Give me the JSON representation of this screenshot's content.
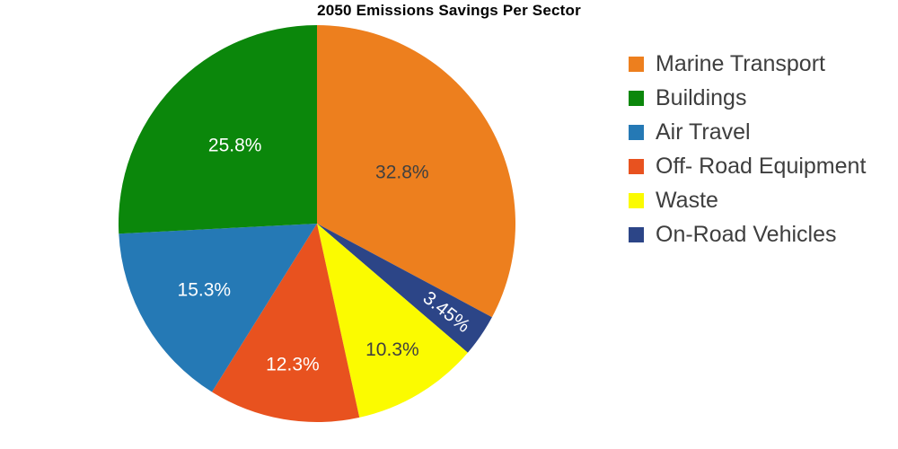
{
  "chart_data": {
    "type": "pie",
    "title": "2050 Emissions Savings Per Sector",
    "legend_position": "right",
    "background_color": "#ffffff",
    "title_color": "#000000",
    "legend_text_color": "#3e3e3e",
    "start_angle_deg_clockwise_from_top": 0,
    "draw_order_clockwise": [
      0,
      5,
      4,
      3,
      2,
      1
    ],
    "slices": [
      {
        "label": "Marine Transport",
        "value": 32.8,
        "pct_label": "32.8%",
        "color": "#ed7f1e",
        "label_text_color": "#404040"
      },
      {
        "label": "Buildings",
        "value": 25.8,
        "pct_label": "25.8%",
        "color": "#0b870b",
        "label_text_color": "#ffffff"
      },
      {
        "label": "Air Travel",
        "value": 15.3,
        "pct_label": "15.3%",
        "color": "#2579b5",
        "label_text_color": "#ffffff"
      },
      {
        "label": "Off- Road Equipment",
        "value": 12.3,
        "pct_label": "12.3%",
        "color": "#e8521f",
        "label_text_color": "#ffffff"
      },
      {
        "label": "Waste",
        "value": 10.3,
        "pct_label": "10.3%",
        "color": "#fbfb00",
        "label_text_color": "#404040"
      },
      {
        "label": "On-Road Vehicles",
        "value": 3.45,
        "pct_label": "3.45%",
        "color": "#2c4587",
        "label_text_color": "#ffffff"
      }
    ]
  }
}
